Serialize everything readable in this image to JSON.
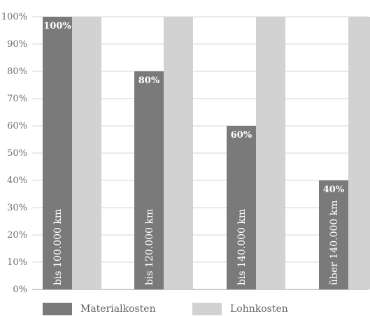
{
  "chart_data": {
    "type": "bar",
    "categories": [
      "bis 100.000 km",
      "bis 120.000 km",
      "bis 140.000 km",
      "über 140.000 km"
    ],
    "series": [
      {
        "name": "Materialkosten",
        "values": [
          100,
          80,
          60,
          40
        ],
        "color": "#7a7a7a",
        "labels": [
          "100%",
          "80%",
          "60%",
          "40%"
        ]
      },
      {
        "name": "Lohnkosten",
        "values": [
          100,
          100,
          100,
          100
        ],
        "color": "#d2d2d2"
      }
    ],
    "yticks": [
      "0%",
      "10%",
      "20%",
      "30%",
      "40%",
      "50%",
      "60%",
      "70%",
      "80%",
      "90%",
      "100%"
    ],
    "ylim": [
      0,
      100
    ],
    "grid": true,
    "legend_position": "bottom"
  }
}
